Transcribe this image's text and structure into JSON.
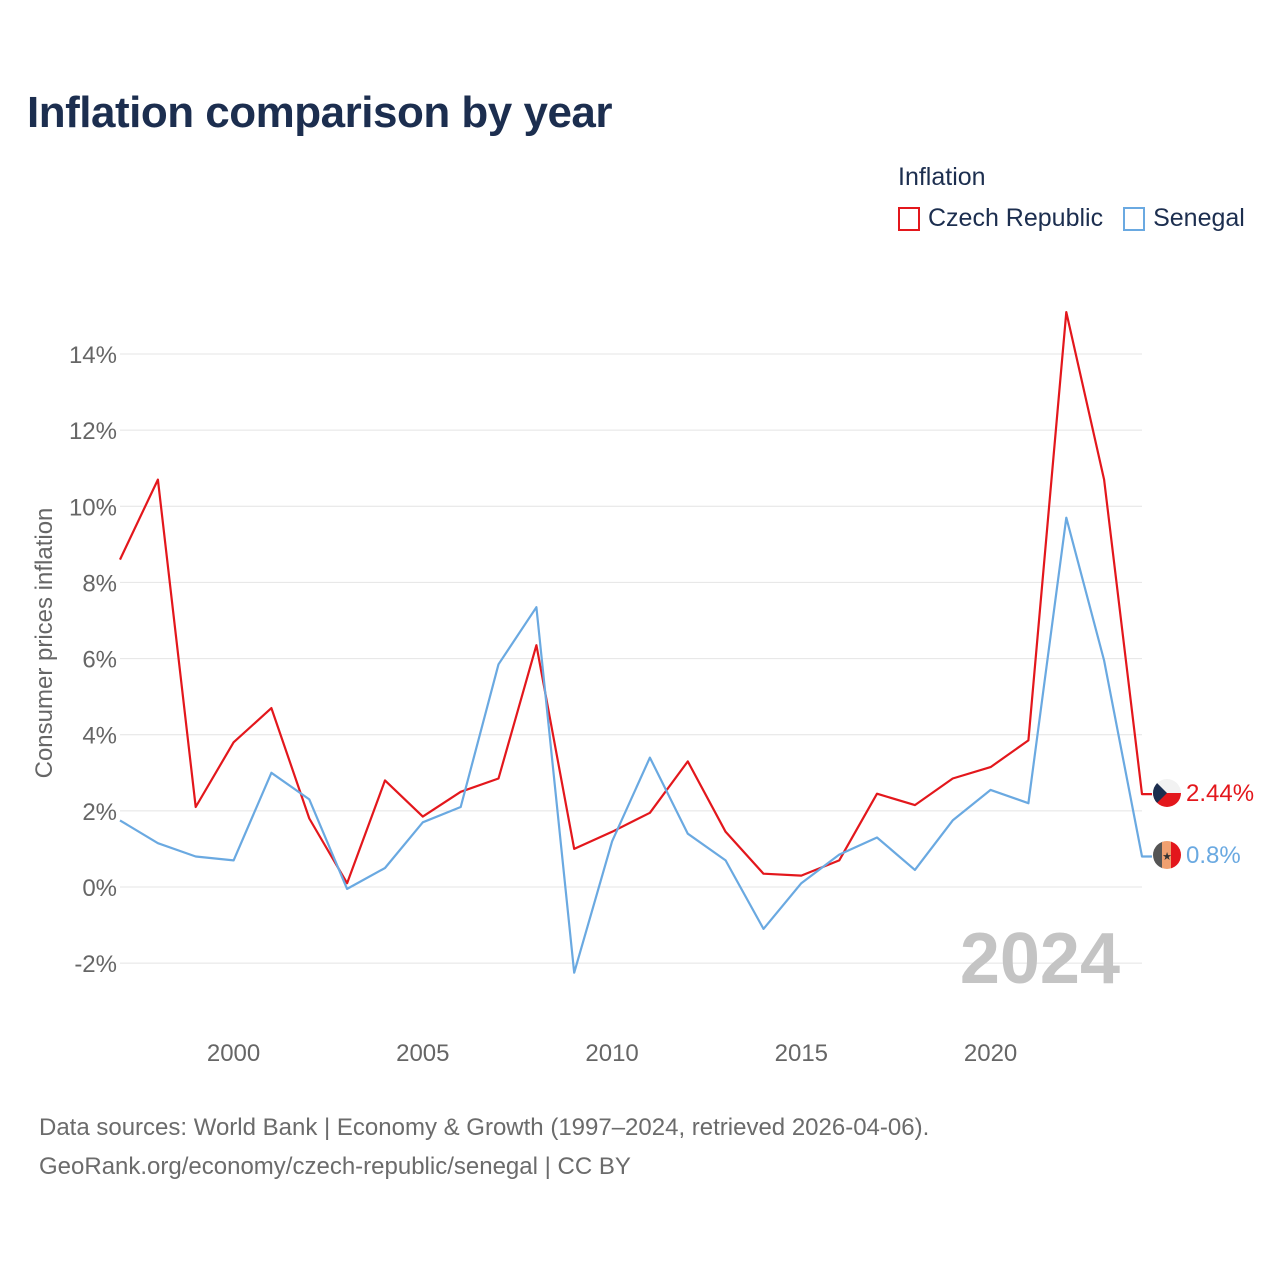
{
  "title": "Inflation comparison by year",
  "legend": {
    "title": "Inflation",
    "items": [
      {
        "label": "Czech Republic",
        "color": "#e3171c"
      },
      {
        "label": "Senegal",
        "color": "#6aa9e1"
      }
    ]
  },
  "source": {
    "line1": "Data sources: World Bank | Economy & Growth (1997–2024, retrieved 2026-04-06).",
    "line2": "GeoRank.org/economy/czech-republic/senegal | CC BY"
  },
  "chart_data": {
    "type": "line",
    "ylabel": "Consumer prices inflation",
    "xlabel": "",
    "year_watermark": "2024",
    "x": [
      1997,
      1998,
      1999,
      2000,
      2001,
      2002,
      2003,
      2004,
      2005,
      2006,
      2007,
      2008,
      2009,
      2010,
      2011,
      2012,
      2013,
      2014,
      2015,
      2016,
      2017,
      2018,
      2019,
      2020,
      2021,
      2022,
      2023,
      2024
    ],
    "xticks": [
      2000,
      2005,
      2010,
      2015,
      2020
    ],
    "xtick_labels": [
      "2000",
      "2005",
      "2010",
      "2015",
      "2020"
    ],
    "xlim": [
      1997,
      2024
    ],
    "ylim": [
      -3,
      15.5
    ],
    "yticks": [
      -2,
      0,
      2,
      4,
      6,
      8,
      10,
      12,
      14
    ],
    "ytick_labels": [
      "-2%",
      "0%",
      "2%",
      "4%",
      "6%",
      "8%",
      "10%",
      "12%",
      "14%"
    ],
    "grid": true,
    "series": [
      {
        "name": "Czech Republic",
        "color": "#e3171c",
        "values": [
          8.6,
          10.7,
          2.1,
          3.8,
          4.7,
          1.8,
          0.1,
          2.8,
          1.85,
          2.5,
          2.85,
          6.35,
          1.0,
          1.45,
          1.95,
          3.3,
          1.45,
          0.35,
          0.3,
          0.7,
          2.45,
          2.15,
          2.85,
          3.15,
          3.85,
          15.1,
          10.7,
          2.44
        ],
        "end_label": "2.44%"
      },
      {
        "name": "Senegal",
        "color": "#6aa9e1",
        "values": [
          1.75,
          1.15,
          0.8,
          0.7,
          3.0,
          2.3,
          -0.05,
          0.5,
          1.7,
          2.1,
          5.85,
          7.35,
          -2.25,
          1.2,
          3.4,
          1.4,
          0.7,
          -1.1,
          0.1,
          0.85,
          1.3,
          0.45,
          1.75,
          2.55,
          2.2,
          9.7,
          5.95,
          0.8
        ],
        "end_label": "0.8%"
      }
    ]
  }
}
